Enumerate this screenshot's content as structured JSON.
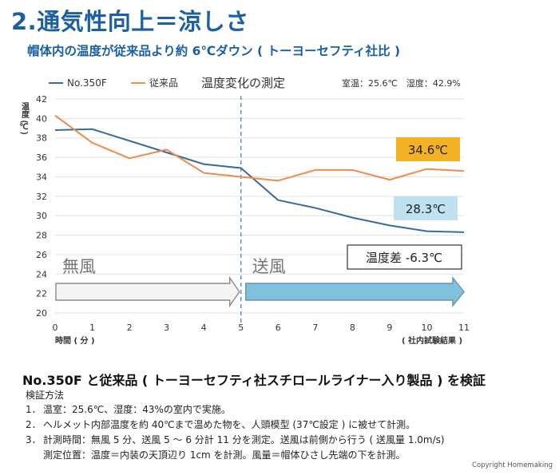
{
  "title": "2.通気性向上＝涼しさ",
  "subtitle": "帽体内の温度が従来品より約 6℃ダウン ( トーヨーセフティ社比 )",
  "chart_data": {
    "type": "line",
    "title": "温度変化の測定",
    "conditions": "室温：25.6℃　湿度：42.9%",
    "xlabel": "時間 ( 分 )",
    "ylabel": "温度 (℃)",
    "x_note": "( 社内試験結果 )",
    "x": [
      0,
      1,
      2,
      3,
      4,
      5,
      6,
      7,
      8,
      9,
      10,
      11
    ],
    "xlim": [
      0,
      11
    ],
    "ylim": [
      20,
      42
    ],
    "yticks": [
      20,
      22,
      24,
      26,
      28,
      30,
      32,
      34,
      36,
      38,
      40,
      42
    ],
    "series": [
      {
        "name": "No.350F",
        "color": "#3a6a9c",
        "values": [
          38.8,
          38.9,
          37.7,
          36.5,
          35.3,
          34.9,
          31.6,
          30.8,
          29.8,
          29.0,
          28.4,
          28.3
        ]
      },
      {
        "name": "従来品",
        "color": "#ef8b4b",
        "values": [
          40.3,
          37.5,
          35.9,
          36.8,
          34.4,
          34.0,
          33.6,
          34.7,
          34.7,
          33.7,
          34.8,
          34.6
        ]
      }
    ],
    "annotations": {
      "conv_end": "34.6℃",
      "new_end": "28.3℃",
      "diff": "温度差 -6.3℃",
      "no_wind": "無風",
      "wind": "送風",
      "divider_x": 5
    },
    "colors": {
      "conv_box": "#f3b223",
      "new_box": "#bfe1f0",
      "wind_arrow": "#7ec2de",
      "divider": "#6c8db9"
    }
  },
  "verification": {
    "heading": "No.350F と従来品 ( トーヨーセフティ社スチロールライナー入り製品 ) を検証",
    "method_label": "検証方法",
    "items": [
      {
        "num": "1．",
        "text": "温室：25.6℃、湿度：43%の室内で実施。"
      },
      {
        "num": "2．",
        "text": "ヘルメット内部温度を約 40℃まで温めた物を、人頭模型 (37℃設定 ) に被せて計測。"
      },
      {
        "num": "3．",
        "text": "計測時間：無風 5 分、送風 5 ～ 6 分計 11 分を測定。送風は前側から行う ( 送風量 1.0m/s)"
      }
    ],
    "item3_cont": "測定位置：温度＝内装の天頂辺り 1cm を計測。風量＝帽体ひさし先端の下を計測。"
  },
  "copyright": "Copyright  Homemaking"
}
